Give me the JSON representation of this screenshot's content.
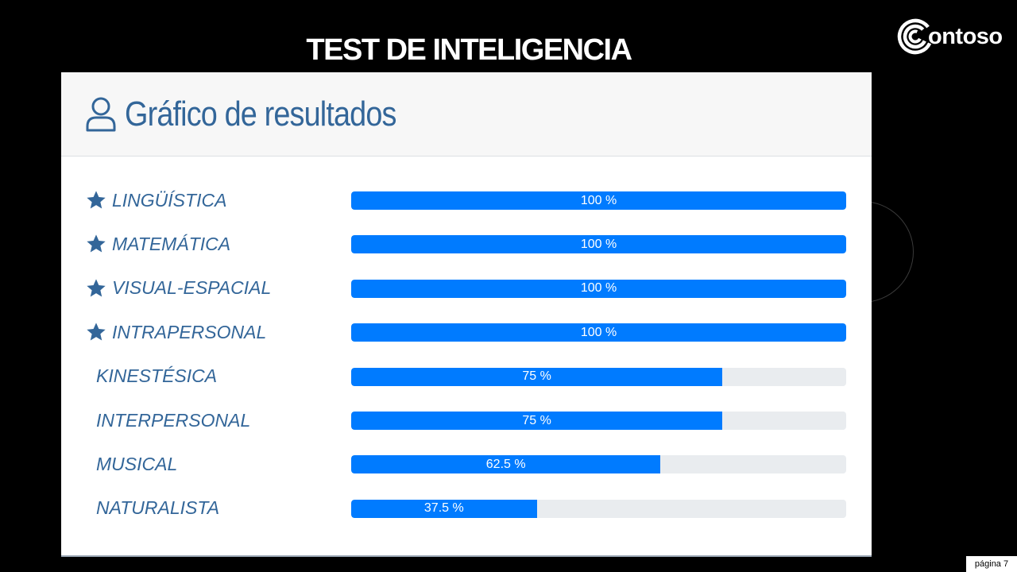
{
  "slide": {
    "title": "TEST DE INTELIGENCIA",
    "logo_text": "ontoso",
    "page_label": "página 7"
  },
  "panel": {
    "title": "Gráfico de resultados",
    "icon": "user-icon"
  },
  "colors": {
    "accent": "#336699",
    "bar": "#007bff",
    "track": "#e9ecef"
  },
  "chart_data": {
    "type": "bar",
    "orientation": "horizontal",
    "title": "Gráfico de resultados",
    "categories": [
      "LINGÜÍSTICA",
      "MATEMÁTICA",
      "VISUAL-ESPACIAL",
      "INTRAPERSONAL",
      "KINESTÉSICA",
      "INTERPERSONAL",
      "MUSICAL",
      "NATURALISTA"
    ],
    "values": [
      100,
      100,
      100,
      100,
      75,
      75,
      62.5,
      37.5
    ],
    "value_labels": [
      "100 %",
      "100 %",
      "100 %",
      "100 %",
      "75 %",
      "75 %",
      "62.5 %",
      "37.5 %"
    ],
    "starred": [
      true,
      true,
      true,
      true,
      false,
      false,
      false,
      false
    ],
    "xlim": [
      0,
      100
    ]
  }
}
